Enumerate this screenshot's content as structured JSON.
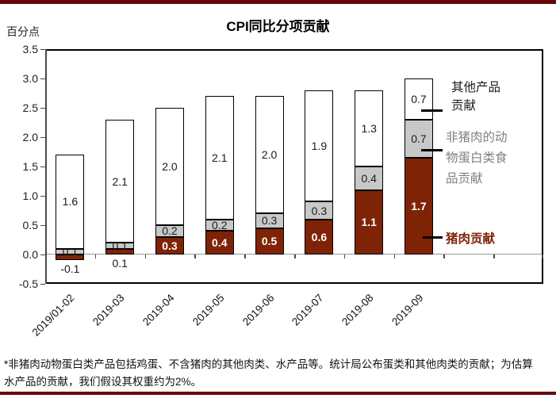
{
  "header": {
    "title": "CPI同比分项贡献",
    "unit_label": "百分点"
  },
  "footnote": {
    "line1": "*非猪肉动物蛋白类产品包括鸡蛋、不含猪肉的其他肉类、水产品等。统计局公布蛋类和其他肉类的贡献；为估算",
    "line2": "水产品的贡献，我们假设其权重约为2%。"
  },
  "colors": {
    "pork_bar": "#7F2306",
    "nonpork_bar": "#C8C8C8",
    "other_bar": "#FFFFFF",
    "rule_maroon": "#65090B",
    "annotation_gray": "#7F7F7F",
    "annotation_black": "#1A1A1A"
  },
  "chart_data": {
    "type": "bar",
    "variant": "stacked",
    "title": "CPI同比分项贡献",
    "ylabel": "百分点",
    "ylim": [
      -0.5,
      3.5
    ],
    "ytick_labels": [
      "3.5",
      "3.0",
      "2.5",
      "2.0",
      "1.5",
      "1.0",
      "0.5",
      "0.0",
      "-0.5"
    ],
    "grid": "zero-line-only",
    "legend_position": "right-side-annotations",
    "categories": [
      "2019/01-02",
      "2019-03",
      "2019-04",
      "2019-05",
      "2019-06",
      "2019-07",
      "2019-08",
      "2019-09"
    ],
    "series": [
      {
        "key": "pork",
        "name": "猪肉贡献",
        "color": "#7F2306",
        "values": [
          -0.1,
          0.1,
          0.3,
          0.4,
          0.5,
          0.6,
          1.1,
          1.7
        ],
        "plot_values": [
          -0.1,
          0.1,
          0.3,
          0.4,
          0.45,
          0.6,
          1.1,
          1.65
        ]
      },
      {
        "key": "non-pork-protein",
        "name": "非猪肉的动物蛋白类食品贡献",
        "color": "#C8C8C8",
        "values": [
          0.1,
          0.1,
          0.2,
          0.2,
          0.3,
          0.3,
          0.4,
          0.7
        ],
        "plot_values": [
          0.1,
          0.1,
          0.2,
          0.2,
          0.25,
          0.3,
          0.4,
          0.65
        ]
      },
      {
        "key": "other-products",
        "name": "其他产品贡献",
        "color": "#FFFFFF",
        "values": [
          1.6,
          2.1,
          2.0,
          2.1,
          2.0,
          1.9,
          1.3,
          0.7
        ],
        "plot_values": [
          1.6,
          2.1,
          2.0,
          2.1,
          2.0,
          1.9,
          1.3,
          0.7
        ]
      }
    ],
    "stack_totals_visual": [
      1.7,
      2.3,
      2.5,
      2.7,
      2.7,
      2.8,
      2.8,
      3.0
    ],
    "annotations": [
      {
        "target_series": "other-products",
        "text": "其他产品\n贡献",
        "color": "#1A1A1A"
      },
      {
        "target_series": "non-pork-protein",
        "text": "非猪肉的动\n物蛋白类食\n品贡献",
        "color": "#7F7F7F"
      },
      {
        "target_series": "pork",
        "text": "猪肉贡献",
        "color": "#7F2306"
      }
    ]
  }
}
